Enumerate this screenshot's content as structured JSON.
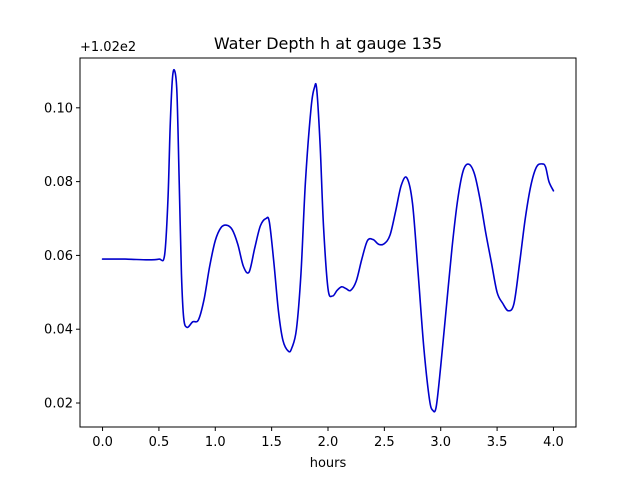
{
  "chart_data": {
    "type": "line",
    "title": "Water Depth h at gauge 135",
    "xlabel": "hours",
    "ylabel": "",
    "y_offset_label": "+1.02e2",
    "y_offset": 102,
    "xlim": [
      -0.2,
      4.2
    ],
    "ylim": [
      0.0135,
      0.1135
    ],
    "x_ticks": [
      0.0,
      0.5,
      1.0,
      1.5,
      2.0,
      2.5,
      3.0,
      3.5,
      4.0
    ],
    "x_tick_labels": [
      "0.0",
      "0.5",
      "1.0",
      "1.5",
      "2.0",
      "2.5",
      "3.0",
      "3.5",
      "4.0"
    ],
    "y_ticks": [
      0.02,
      0.04,
      0.06,
      0.08,
      0.1
    ],
    "y_tick_labels": [
      "0.02",
      "0.04",
      "0.06",
      "0.08",
      "0.10"
    ],
    "grid": false,
    "series": [
      {
        "color": "#0000cc",
        "x": [
          0.0,
          0.2,
          0.4,
          0.5,
          0.55,
          0.58,
          0.6,
          0.62,
          0.64,
          0.66,
          0.68,
          0.7,
          0.72,
          0.75,
          0.8,
          0.85,
          0.9,
          0.95,
          1.0,
          1.05,
          1.1,
          1.15,
          1.2,
          1.25,
          1.3,
          1.35,
          1.4,
          1.45,
          1.48,
          1.52,
          1.56,
          1.6,
          1.65,
          1.68,
          1.72,
          1.76,
          1.8,
          1.85,
          1.88,
          1.9,
          1.93,
          1.96,
          2.0,
          2.04,
          2.08,
          2.12,
          2.16,
          2.2,
          2.25,
          2.3,
          2.35,
          2.4,
          2.45,
          2.5,
          2.55,
          2.6,
          2.65,
          2.7,
          2.75,
          2.8,
          2.85,
          2.9,
          2.93,
          2.96,
          3.0,
          3.05,
          3.1,
          3.15,
          3.2,
          3.25,
          3.3,
          3.35,
          3.4,
          3.45,
          3.5,
          3.55,
          3.6,
          3.65,
          3.7,
          3.75,
          3.8,
          3.85,
          3.9,
          3.93,
          3.96,
          4.0
        ],
        "y": [
          0.059,
          0.059,
          0.0588,
          0.059,
          0.06,
          0.075,
          0.095,
          0.108,
          0.11,
          0.104,
          0.08,
          0.055,
          0.043,
          0.0405,
          0.042,
          0.0425,
          0.048,
          0.057,
          0.064,
          0.0675,
          0.0682,
          0.067,
          0.063,
          0.057,
          0.0555,
          0.062,
          0.068,
          0.07,
          0.069,
          0.058,
          0.045,
          0.037,
          0.034,
          0.035,
          0.04,
          0.055,
          0.08,
          0.1,
          0.1055,
          0.105,
          0.09,
          0.068,
          0.051,
          0.049,
          0.0505,
          0.0515,
          0.051,
          0.0505,
          0.053,
          0.059,
          0.064,
          0.0643,
          0.063,
          0.0632,
          0.0655,
          0.072,
          0.079,
          0.081,
          0.074,
          0.055,
          0.035,
          0.021,
          0.018,
          0.019,
          0.03,
          0.046,
          0.062,
          0.075,
          0.083,
          0.0847,
          0.082,
          0.075,
          0.066,
          0.058,
          0.05,
          0.047,
          0.045,
          0.047,
          0.058,
          0.07,
          0.079,
          0.084,
          0.0848,
          0.084,
          0.08,
          0.0775
        ]
      }
    ]
  }
}
